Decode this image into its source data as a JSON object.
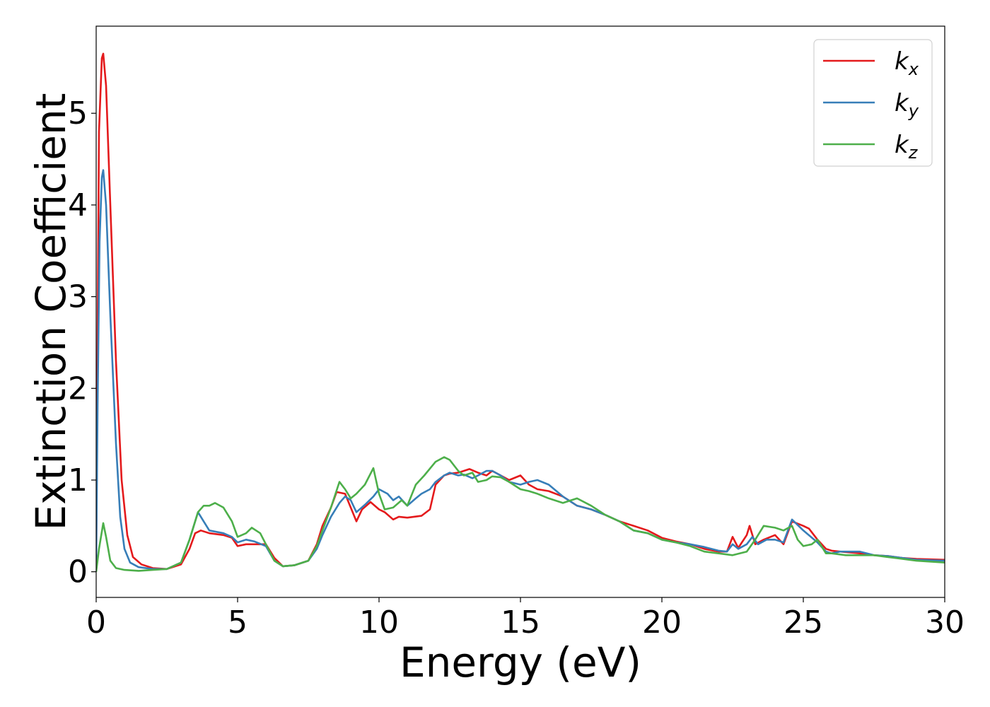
{
  "chart_data": {
    "type": "line",
    "title": "",
    "xlabel": "Energy (eV)",
    "ylabel": "Extinction Coefficient",
    "xlim": [
      0,
      30
    ],
    "ylim": [
      -0.28,
      5.95
    ],
    "xticks": [
      0,
      5,
      10,
      15,
      20,
      25,
      30
    ],
    "yticks": [
      0,
      1,
      2,
      3,
      4,
      5
    ],
    "grid": false,
    "legend_position": "top-right",
    "series": [
      {
        "name": "k_x",
        "label_base": "k",
        "label_sub": "x",
        "color": "#e41a1c",
        "points": [
          [
            0,
            0.05
          ],
          [
            0.05,
            2.5
          ],
          [
            0.1,
            4.8
          ],
          [
            0.2,
            5.6
          ],
          [
            0.25,
            5.65
          ],
          [
            0.35,
            5.3
          ],
          [
            0.5,
            4.0
          ],
          [
            0.7,
            2.3
          ],
          [
            0.9,
            1.0
          ],
          [
            1.1,
            0.4
          ],
          [
            1.3,
            0.16
          ],
          [
            1.6,
            0.08
          ],
          [
            2,
            0.04
          ],
          [
            2.5,
            0.03
          ],
          [
            3,
            0.08
          ],
          [
            3.3,
            0.25
          ],
          [
            3.5,
            0.42
          ],
          [
            3.7,
            0.45
          ],
          [
            4,
            0.42
          ],
          [
            4.5,
            0.4
          ],
          [
            4.8,
            0.37
          ],
          [
            5,
            0.28
          ],
          [
            5.3,
            0.3
          ],
          [
            5.6,
            0.3
          ],
          [
            6,
            0.3
          ],
          [
            6.3,
            0.15
          ],
          [
            6.6,
            0.06
          ],
          [
            7,
            0.07
          ],
          [
            7.5,
            0.12
          ],
          [
            7.8,
            0.3
          ],
          [
            8,
            0.5
          ],
          [
            8.3,
            0.7
          ],
          [
            8.5,
            0.87
          ],
          [
            8.8,
            0.85
          ],
          [
            9,
            0.7
          ],
          [
            9.2,
            0.55
          ],
          [
            9.4,
            0.68
          ],
          [
            9.7,
            0.76
          ],
          [
            10,
            0.68
          ],
          [
            10.2,
            0.65
          ],
          [
            10.5,
            0.57
          ],
          [
            10.7,
            0.6
          ],
          [
            11,
            0.59
          ],
          [
            11.5,
            0.61
          ],
          [
            11.8,
            0.68
          ],
          [
            12,
            0.95
          ],
          [
            12.3,
            1.05
          ],
          [
            12.5,
            1.07
          ],
          [
            12.8,
            1.08
          ],
          [
            13,
            1.1
          ],
          [
            13.2,
            1.12
          ],
          [
            13.5,
            1.08
          ],
          [
            13.8,
            1.05
          ],
          [
            14,
            1.1
          ],
          [
            14.3,
            1.05
          ],
          [
            14.6,
            1.0
          ],
          [
            15,
            1.05
          ],
          [
            15.3,
            0.95
          ],
          [
            15.6,
            0.9
          ],
          [
            16,
            0.88
          ],
          [
            16.5,
            0.82
          ],
          [
            17,
            0.72
          ],
          [
            17.5,
            0.68
          ],
          [
            18,
            0.62
          ],
          [
            18.5,
            0.55
          ],
          [
            19,
            0.5
          ],
          [
            19.5,
            0.45
          ],
          [
            20,
            0.37
          ],
          [
            20.5,
            0.33
          ],
          [
            21,
            0.3
          ],
          [
            21.5,
            0.25
          ],
          [
            22,
            0.22
          ],
          [
            22.3,
            0.22
          ],
          [
            22.5,
            0.38
          ],
          [
            22.7,
            0.26
          ],
          [
            23,
            0.4
          ],
          [
            23.1,
            0.5
          ],
          [
            23.3,
            0.3
          ],
          [
            23.6,
            0.35
          ],
          [
            24,
            0.4
          ],
          [
            24.3,
            0.3
          ],
          [
            24.6,
            0.55
          ],
          [
            25,
            0.5
          ],
          [
            25.2,
            0.47
          ],
          [
            25.5,
            0.35
          ],
          [
            25.8,
            0.25
          ],
          [
            26,
            0.23
          ],
          [
            26.3,
            0.22
          ],
          [
            27,
            0.2
          ],
          [
            27.5,
            0.18
          ],
          [
            28,
            0.17
          ],
          [
            28.5,
            0.15
          ],
          [
            29,
            0.14
          ],
          [
            30,
            0.13
          ]
        ]
      },
      {
        "name": "k_y",
        "label_base": "k",
        "label_sub": "y",
        "color": "#377eb8",
        "points": [
          [
            0,
            0.05
          ],
          [
            0.05,
            1.8
          ],
          [
            0.12,
            3.6
          ],
          [
            0.2,
            4.3
          ],
          [
            0.25,
            4.38
          ],
          [
            0.35,
            4.0
          ],
          [
            0.5,
            2.8
          ],
          [
            0.7,
            1.4
          ],
          [
            0.85,
            0.6
          ],
          [
            1,
            0.25
          ],
          [
            1.2,
            0.1
          ],
          [
            1.5,
            0.05
          ],
          [
            2,
            0.03
          ],
          [
            2.5,
            0.03
          ],
          [
            3,
            0.1
          ],
          [
            3.3,
            0.35
          ],
          [
            3.6,
            0.65
          ],
          [
            3.8,
            0.55
          ],
          [
            4,
            0.45
          ],
          [
            4.5,
            0.42
          ],
          [
            4.8,
            0.38
          ],
          [
            5,
            0.32
          ],
          [
            5.3,
            0.35
          ],
          [
            5.6,
            0.33
          ],
          [
            6,
            0.28
          ],
          [
            6.3,
            0.12
          ],
          [
            6.6,
            0.06
          ],
          [
            7,
            0.07
          ],
          [
            7.5,
            0.12
          ],
          [
            7.8,
            0.25
          ],
          [
            8,
            0.4
          ],
          [
            8.3,
            0.6
          ],
          [
            8.6,
            0.75
          ],
          [
            8.8,
            0.82
          ],
          [
            9,
            0.78
          ],
          [
            9.2,
            0.65
          ],
          [
            9.5,
            0.73
          ],
          [
            9.8,
            0.82
          ],
          [
            10,
            0.9
          ],
          [
            10.3,
            0.85
          ],
          [
            10.5,
            0.78
          ],
          [
            10.7,
            0.82
          ],
          [
            11,
            0.72
          ],
          [
            11.3,
            0.8
          ],
          [
            11.5,
            0.85
          ],
          [
            11.8,
            0.9
          ],
          [
            12,
            0.98
          ],
          [
            12.3,
            1.05
          ],
          [
            12.5,
            1.08
          ],
          [
            12.8,
            1.05
          ],
          [
            13,
            1.06
          ],
          [
            13.3,
            1.02
          ],
          [
            13.5,
            1.05
          ],
          [
            13.8,
            1.1
          ],
          [
            14,
            1.1
          ],
          [
            14.3,
            1.05
          ],
          [
            14.6,
            0.98
          ],
          [
            15,
            0.95
          ],
          [
            15.3,
            0.98
          ],
          [
            15.6,
            1.0
          ],
          [
            16,
            0.95
          ],
          [
            16.5,
            0.82
          ],
          [
            17,
            0.72
          ],
          [
            17.5,
            0.68
          ],
          [
            18,
            0.62
          ],
          [
            18.5,
            0.55
          ],
          [
            19,
            0.45
          ],
          [
            19.5,
            0.42
          ],
          [
            20,
            0.35
          ],
          [
            20.5,
            0.32
          ],
          [
            21,
            0.3
          ],
          [
            21.5,
            0.27
          ],
          [
            22,
            0.23
          ],
          [
            22.3,
            0.22
          ],
          [
            22.5,
            0.3
          ],
          [
            22.7,
            0.25
          ],
          [
            23,
            0.3
          ],
          [
            23.2,
            0.38
          ],
          [
            23.4,
            0.3
          ],
          [
            23.7,
            0.35
          ],
          [
            24,
            0.35
          ],
          [
            24.3,
            0.32
          ],
          [
            24.6,
            0.57
          ],
          [
            25,
            0.45
          ],
          [
            25.5,
            0.32
          ],
          [
            25.8,
            0.22
          ],
          [
            26,
            0.2
          ],
          [
            26.3,
            0.22
          ],
          [
            27,
            0.22
          ],
          [
            27.5,
            0.18
          ],
          [
            28,
            0.17
          ],
          [
            28.5,
            0.15
          ],
          [
            29,
            0.13
          ],
          [
            30,
            0.12
          ]
        ]
      },
      {
        "name": "k_z",
        "label_base": "k",
        "label_sub": "z",
        "color": "#4daf4a",
        "points": [
          [
            0,
            0.0
          ],
          [
            0.1,
            0.25
          ],
          [
            0.25,
            0.53
          ],
          [
            0.35,
            0.38
          ],
          [
            0.5,
            0.12
          ],
          [
            0.7,
            0.04
          ],
          [
            1,
            0.02
          ],
          [
            1.5,
            0.01
          ],
          [
            2,
            0.02
          ],
          [
            2.5,
            0.03
          ],
          [
            3,
            0.1
          ],
          [
            3.3,
            0.35
          ],
          [
            3.6,
            0.65
          ],
          [
            3.8,
            0.72
          ],
          [
            4,
            0.72
          ],
          [
            4.2,
            0.75
          ],
          [
            4.5,
            0.7
          ],
          [
            4.8,
            0.55
          ],
          [
            5,
            0.38
          ],
          [
            5.3,
            0.42
          ],
          [
            5.5,
            0.48
          ],
          [
            5.8,
            0.42
          ],
          [
            6,
            0.3
          ],
          [
            6.3,
            0.12
          ],
          [
            6.6,
            0.06
          ],
          [
            7,
            0.07
          ],
          [
            7.5,
            0.12
          ],
          [
            7.8,
            0.28
          ],
          [
            8,
            0.45
          ],
          [
            8.3,
            0.7
          ],
          [
            8.6,
            0.98
          ],
          [
            8.8,
            0.9
          ],
          [
            9,
            0.8
          ],
          [
            9.2,
            0.85
          ],
          [
            9.5,
            0.95
          ],
          [
            9.8,
            1.13
          ],
          [
            10,
            0.85
          ],
          [
            10.2,
            0.68
          ],
          [
            10.5,
            0.7
          ],
          [
            10.8,
            0.78
          ],
          [
            11,
            0.72
          ],
          [
            11.3,
            0.95
          ],
          [
            11.6,
            1.05
          ],
          [
            12,
            1.2
          ],
          [
            12.3,
            1.25
          ],
          [
            12.5,
            1.22
          ],
          [
            12.8,
            1.1
          ],
          [
            13,
            1.05
          ],
          [
            13.3,
            1.08
          ],
          [
            13.5,
            0.98
          ],
          [
            13.8,
            1.0
          ],
          [
            14,
            1.04
          ],
          [
            14.3,
            1.03
          ],
          [
            14.6,
            0.98
          ],
          [
            15,
            0.9
          ],
          [
            15.3,
            0.88
          ],
          [
            15.6,
            0.85
          ],
          [
            16,
            0.8
          ],
          [
            16.5,
            0.75
          ],
          [
            17,
            0.8
          ],
          [
            17.5,
            0.72
          ],
          [
            18,
            0.62
          ],
          [
            18.5,
            0.55
          ],
          [
            19,
            0.45
          ],
          [
            19.5,
            0.42
          ],
          [
            20,
            0.35
          ],
          [
            20.5,
            0.32
          ],
          [
            21,
            0.28
          ],
          [
            21.5,
            0.22
          ],
          [
            22,
            0.2
          ],
          [
            22.5,
            0.18
          ],
          [
            23,
            0.22
          ],
          [
            23.3,
            0.35
          ],
          [
            23.6,
            0.5
          ],
          [
            24,
            0.48
          ],
          [
            24.3,
            0.45
          ],
          [
            24.6,
            0.5
          ],
          [
            24.8,
            0.35
          ],
          [
            25,
            0.28
          ],
          [
            25.3,
            0.3
          ],
          [
            25.5,
            0.35
          ],
          [
            25.8,
            0.2
          ],
          [
            26,
            0.2
          ],
          [
            26.5,
            0.18
          ],
          [
            27,
            0.18
          ],
          [
            27.5,
            0.18
          ],
          [
            28,
            0.16
          ],
          [
            28.5,
            0.14
          ],
          [
            29,
            0.12
          ],
          [
            30,
            0.1
          ]
        ]
      }
    ]
  }
}
